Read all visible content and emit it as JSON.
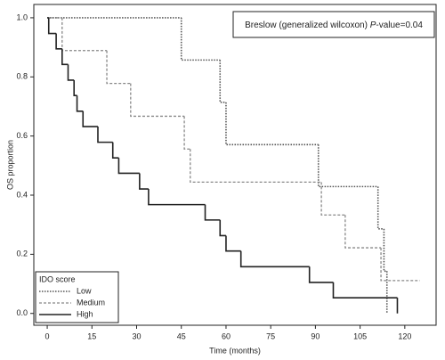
{
  "chart_data": {
    "type": "step",
    "x_label": "Time (months)",
    "y_label": "OS proportion",
    "annotation": {
      "prefix": "Breslow (generalized wilcoxon) ",
      "italic": "P",
      "suffix": "-value=0.04"
    },
    "legend_title": "IDO score",
    "legend_position": "lower left",
    "xlim": [
      -4.5,
      130.5
    ],
    "ylim": [
      -0.04,
      1.045
    ],
    "xticks": [
      0,
      15,
      30,
      45,
      60,
      75,
      90,
      105,
      120
    ],
    "yticks": [
      {
        "value": 0,
        "label": "0.0"
      },
      0.2,
      0.4,
      0.6,
      0.8,
      {
        "value": 1,
        "label": "1.0"
      }
    ],
    "series": [
      {
        "name": "Low",
        "color": "#555555",
        "dash": "dotted",
        "x": [
          0,
          45,
          58,
          60,
          91,
          111,
          113,
          114
        ],
        "values": [
          1,
          0.857,
          0.714,
          0.571,
          0.429,
          0.286,
          0.143,
          0
        ]
      },
      {
        "name": "Medium",
        "color": "#888888",
        "dash": "dashed",
        "x": [
          0,
          5,
          20,
          28,
          46,
          48,
          92,
          100,
          112,
          125
        ],
        "values": [
          1,
          0.889,
          0.778,
          0.667,
          0.556,
          0.444,
          0.333,
          0.222,
          0.111,
          0.111
        ]
      },
      {
        "name": "High",
        "color": "#222222",
        "dash": "solid",
        "x": [
          0,
          0.5,
          3,
          5,
          7,
          9,
          10,
          12,
          17,
          22,
          24,
          31,
          34,
          53,
          58,
          60,
          65,
          88,
          96,
          117.5
        ],
        "values": [
          1,
          0.947,
          0.895,
          0.842,
          0.789,
          0.737,
          0.684,
          0.632,
          0.579,
          0.526,
          0.474,
          0.421,
          0.368,
          0.316,
          0.263,
          0.211,
          0.158,
          0.105,
          0.053,
          0
        ]
      }
    ]
  }
}
